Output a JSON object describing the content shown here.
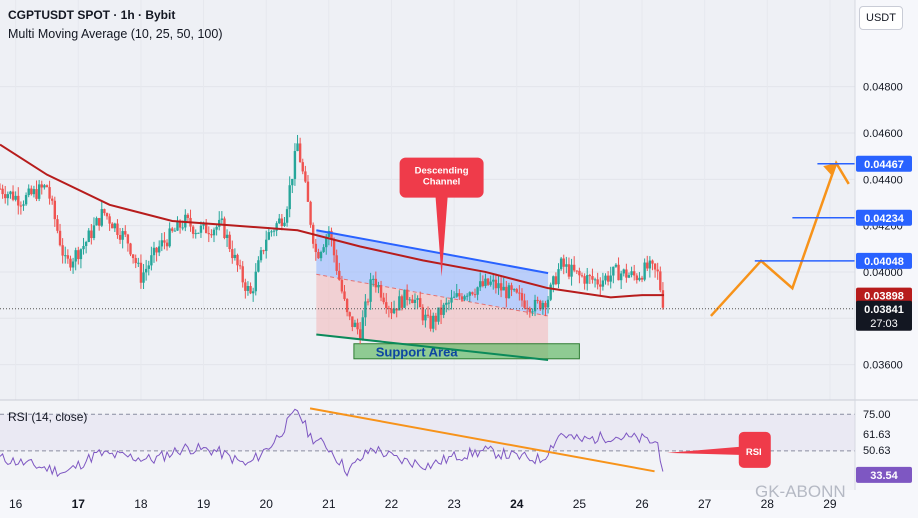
{
  "header": {
    "symbol_line": "CGPTUSDT SPOT · 1h · Bybit",
    "indicator_line": "Multi Moving Average (10, 25, 50, 100)",
    "currency_button": "USDT"
  },
  "colors": {
    "up": "#26a69a",
    "down": "#ef5350",
    "ma": "#b71c1c",
    "channel_top": "#2962ff",
    "channel_bottom": "#0b8a5a",
    "projection": "#f7931a",
    "rsi": "#7e57c2",
    "price_tag": "#2962ff"
  },
  "chart_data": [
    {
      "type": "candlestick",
      "title": "CGPTUSDT SPOT · 1h · Bybit",
      "x_ticks": [
        "16",
        "17",
        "18",
        "19",
        "20",
        "21",
        "22",
        "23",
        "24",
        "25",
        "26",
        "27",
        "28",
        "29"
      ],
      "bold_ticks": [
        "17",
        "24"
      ],
      "y_ticks": [
        "0.04800",
        "0.04600",
        "0.04400",
        "0.04200",
        "0.04000",
        "0.03800",
        "0.03600"
      ],
      "ylim": [
        0.0346,
        0.0498
      ],
      "xlim": [
        15.75,
        29.4
      ],
      "last_candle_x": 26.35,
      "price_path": [
        [
          15.75,
          0.0436
        ],
        [
          16.1,
          0.0431
        ],
        [
          16.5,
          0.0437
        ],
        [
          16.8,
          0.0403
        ],
        [
          17.1,
          0.0412
        ],
        [
          17.4,
          0.0426
        ],
        [
          17.8,
          0.0413
        ],
        [
          18.0,
          0.0398
        ],
        [
          18.3,
          0.0411
        ],
        [
          18.7,
          0.0422
        ],
        [
          18.9,
          0.0418
        ],
        [
          19.3,
          0.042
        ],
        [
          19.6,
          0.0398
        ],
        [
          19.75,
          0.039
        ],
        [
          20.0,
          0.0415
        ],
        [
          20.3,
          0.0425
        ],
        [
          20.5,
          0.0455
        ],
        [
          20.6,
          0.044
        ],
        [
          20.8,
          0.0407
        ],
        [
          21.0,
          0.0418
        ],
        [
          21.3,
          0.038
        ],
        [
          21.5,
          0.0374
        ],
        [
          21.7,
          0.0398
        ],
        [
          22.0,
          0.0384
        ],
        [
          22.3,
          0.0391
        ],
        [
          22.6,
          0.0377
        ],
        [
          22.9,
          0.0386
        ],
        [
          23.2,
          0.0392
        ],
        [
          23.6,
          0.0395
        ],
        [
          24.0,
          0.0389
        ],
        [
          24.3,
          0.0385
        ],
        [
          24.5,
          0.0389
        ],
        [
          24.7,
          0.0403
        ],
        [
          25.0,
          0.0398
        ],
        [
          25.3,
          0.0396
        ],
        [
          25.6,
          0.04
        ],
        [
          25.9,
          0.0398
        ],
        [
          26.1,
          0.0402
        ],
        [
          26.25,
          0.0399
        ],
        [
          26.35,
          0.0385
        ]
      ],
      "moving_average": [
        [
          15.75,
          0.0455
        ],
        [
          16.5,
          0.0442
        ],
        [
          17.5,
          0.0429
        ],
        [
          18.5,
          0.0422
        ],
        [
          19.5,
          0.042
        ],
        [
          20.5,
          0.0418
        ],
        [
          21.5,
          0.0411
        ],
        [
          22.5,
          0.0405
        ],
        [
          23.5,
          0.04
        ],
        [
          24.5,
          0.0393
        ],
        [
          25.0,
          0.0391
        ],
        [
          25.5,
          0.0389
        ],
        [
          26.0,
          0.039
        ],
        [
          26.35,
          0.039
        ]
      ],
      "channel_upper": [
        [
          20.8,
          0.0418
        ],
        [
          24.5,
          0.03995
        ]
      ],
      "channel_lower": [
        [
          20.8,
          0.0373
        ],
        [
          24.5,
          0.0362
        ]
      ],
      "channel_mid": [
        [
          20.8,
          0.0399
        ],
        [
          24.5,
          0.0381
        ]
      ],
      "support_area": {
        "x": [
          21.4,
          25.0
        ],
        "y": [
          0.03625,
          0.0369
        ],
        "label": "Support Area"
      },
      "descending_label": {
        "lines": [
          "Descending",
          "Channel"
        ],
        "x": 22.8,
        "y": 0.0439,
        "tip": [
          22.8,
          0.0398
        ]
      },
      "projection": [
        [
          27.1,
          0.0381
        ],
        [
          27.9,
          0.04048
        ],
        [
          28.4,
          0.0393
        ],
        [
          29.1,
          0.0447
        ],
        [
          29.3,
          0.0438
        ]
      ],
      "target_levels": [
        {
          "value": 0.04467,
          "label": "0.04467",
          "x_from": 28.8
        },
        {
          "value": 0.04234,
          "label": "0.04234",
          "x_from": 28.4
        },
        {
          "value": 0.04048,
          "label": "0.04048",
          "x_from": 27.8
        }
      ],
      "current_price": {
        "value": 0.03841,
        "label": "0.03841",
        "countdown": "27:03"
      },
      "ma_price": {
        "value": 0.03898,
        "label": "0.03898"
      }
    },
    {
      "type": "line",
      "title": "RSI (14, close)",
      "ylim": [
        28,
        82
      ],
      "y_ticks": [
        "75.00",
        "61.63",
        "50.63",
        "33.54"
      ],
      "levels": [
        75,
        50
      ],
      "rsi_path": [
        [
          15.75,
          45
        ],
        [
          16.3,
          40
        ],
        [
          16.8,
          35
        ],
        [
          17.3,
          48
        ],
        [
          17.8,
          46
        ],
        [
          18.2,
          44
        ],
        [
          18.7,
          52
        ],
        [
          19.2,
          50
        ],
        [
          19.7,
          40
        ],
        [
          20.1,
          55
        ],
        [
          20.5,
          78
        ],
        [
          20.7,
          60
        ],
        [
          21.0,
          52
        ],
        [
          21.3,
          36
        ],
        [
          21.7,
          52
        ],
        [
          22.1,
          44
        ],
        [
          22.6,
          40
        ],
        [
          23.0,
          46
        ],
        [
          23.5,
          50
        ],
        [
          24.0,
          46
        ],
        [
          24.4,
          44
        ],
        [
          24.7,
          62
        ],
        [
          25.0,
          57
        ],
        [
          25.5,
          60
        ],
        [
          26.0,
          58
        ],
        [
          26.25,
          55
        ],
        [
          26.35,
          35
        ]
      ],
      "trendline": [
        [
          20.7,
          79
        ],
        [
          26.2,
          36
        ]
      ],
      "rsi_label": {
        "text": "RSI",
        "x": 27.8,
        "y": 50,
        "tip": [
          26.4,
          50
        ]
      },
      "current": {
        "value": 33.54,
        "label": "33.54"
      }
    }
  ],
  "watermark": "GK-ABONN"
}
